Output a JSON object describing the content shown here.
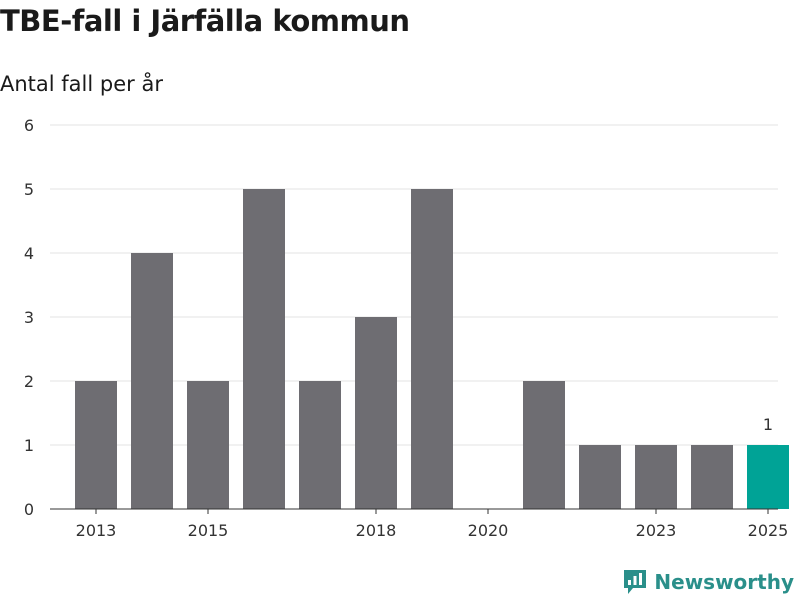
{
  "title": "TBE-fall i Järfälla kommun",
  "subtitle": "Antal fall per år",
  "brand": "Newsworthy",
  "colors": {
    "bar": "#6e6d72",
    "highlight": "#00a396",
    "grid": "#e3e3e3",
    "axis": "#333333"
  },
  "chart_data": {
    "type": "bar",
    "categories": [
      "2013",
      "2014",
      "2015",
      "2016",
      "2017",
      "2018",
      "2019",
      "2020",
      "2021",
      "2022",
      "2023",
      "2024",
      "2025"
    ],
    "values": [
      2,
      4,
      2,
      5,
      2,
      3,
      5,
      0,
      2,
      1,
      1,
      1,
      1
    ],
    "highlight_index": 12,
    "data_labels": [
      {
        "index": 12,
        "text": "1"
      }
    ],
    "x_ticks": [
      "2013",
      "2015",
      "2018",
      "2020",
      "2023",
      "2025"
    ],
    "y_ticks": [
      0,
      1,
      2,
      3,
      4,
      5,
      6
    ],
    "ylim": [
      0,
      6
    ],
    "title": "TBE-fall i Järfälla kommun",
    "ylabel": "Antal fall per år",
    "xlabel": "",
    "grid": true
  }
}
